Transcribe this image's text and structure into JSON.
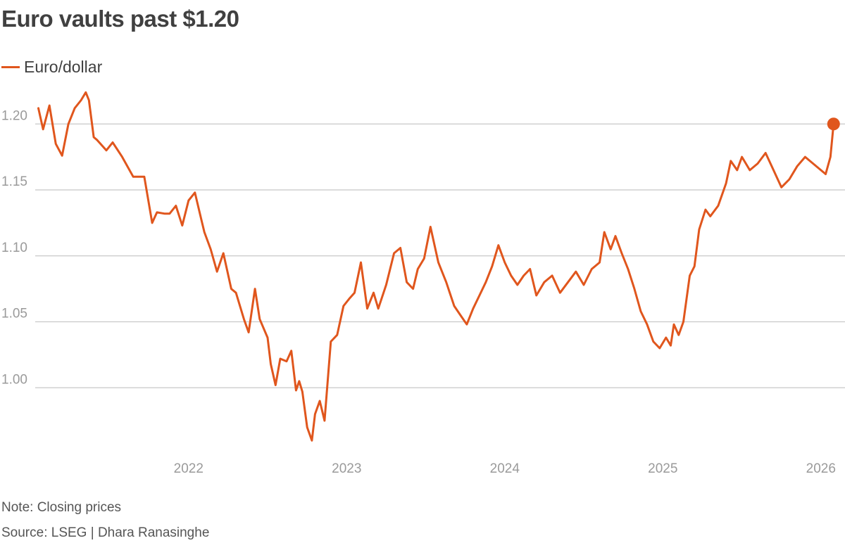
{
  "colors": {
    "series": "#e0561d",
    "grid": "#c8c8c8",
    "tick": "#9a9a9a"
  },
  "chart_data": {
    "type": "line",
    "title": "Euro vaults past $1.20",
    "legend": [
      "Euro/dollar"
    ],
    "note": "Note: Closing prices",
    "source": "Source: LSEG | Dhara Ranasinghe",
    "y_ticks": [
      1.0,
      1.05,
      1.1,
      1.15,
      1.2
    ],
    "y_tick_labels": [
      "1.00",
      "1.05",
      "1.10",
      "1.15",
      "1.20"
    ],
    "x_ticks": [
      2022,
      2023,
      2024,
      2025,
      2026
    ],
    "x_tick_labels": [
      "2022",
      "2023",
      "2024",
      "2025",
      "2026"
    ],
    "xlim": [
      2021.03,
      2026.13
    ],
    "ylim": [
      0.95,
      1.23
    ],
    "end_label": "1.2",
    "series": [
      {
        "name": "Euro/dollar",
        "x": [
          2021.05,
          2021.08,
          2021.12,
          2021.16,
          2021.2,
          2021.24,
          2021.28,
          2021.32,
          2021.35,
          2021.37,
          2021.4,
          2021.42,
          2021.45,
          2021.48,
          2021.52,
          2021.58,
          2021.65,
          2021.72,
          2021.77,
          2021.8,
          2021.85,
          2021.88,
          2021.92,
          2021.96,
          2022.0,
          2022.04,
          2022.08,
          2022.1,
          2022.14,
          2022.18,
          2022.22,
          2022.27,
          2022.3,
          2022.35,
          2022.38,
          2022.42,
          2022.45,
          2022.5,
          2022.52,
          2022.55,
          2022.58,
          2022.62,
          2022.65,
          2022.68,
          2022.7,
          2022.72,
          2022.75,
          2022.78,
          2022.8,
          2022.83,
          2022.86,
          2022.9,
          2022.94,
          2022.98,
          2023.02,
          2023.05,
          2023.09,
          2023.13,
          2023.17,
          2023.2,
          2023.25,
          2023.3,
          2023.34,
          2023.38,
          2023.42,
          2023.45,
          2023.49,
          2023.53,
          2023.58,
          2023.63,
          2023.68,
          2023.72,
          2023.76,
          2023.8,
          2023.84,
          2023.88,
          2023.92,
          2023.96,
          2024.0,
          2024.04,
          2024.08,
          2024.12,
          2024.16,
          2024.2,
          2024.25,
          2024.3,
          2024.35,
          2024.4,
          2024.45,
          2024.5,
          2024.55,
          2024.6,
          2024.63,
          2024.67,
          2024.7,
          2024.74,
          2024.78,
          2024.82,
          2024.86,
          2024.9,
          2024.94,
          2024.98,
          2025.02,
          2025.05,
          2025.07,
          2025.1,
          2025.13,
          2025.17,
          2025.2,
          2025.23,
          2025.27,
          2025.3,
          2025.35,
          2025.4,
          2025.43,
          2025.47,
          2025.5,
          2025.55,
          2025.6,
          2025.65,
          2025.7,
          2025.75,
          2025.8,
          2025.85,
          2025.9,
          2025.95,
          2026.0,
          2026.03,
          2026.06,
          2026.08
        ],
        "values": [
          1.212,
          1.196,
          1.214,
          1.185,
          1.176,
          1.2,
          1.212,
          1.218,
          1.224,
          1.218,
          1.19,
          1.188,
          1.184,
          1.18,
          1.186,
          1.175,
          1.16,
          1.16,
          1.125,
          1.133,
          1.132,
          1.132,
          1.138,
          1.123,
          1.142,
          1.148,
          1.128,
          1.118,
          1.105,
          1.088,
          1.102,
          1.075,
          1.072,
          1.052,
          1.042,
          1.075,
          1.052,
          1.038,
          1.018,
          1.002,
          1.022,
          1.02,
          1.028,
          0.998,
          1.005,
          0.997,
          0.97,
          0.96,
          0.98,
          0.99,
          0.975,
          1.035,
          1.04,
          1.062,
          1.068,
          1.072,
          1.095,
          1.06,
          1.072,
          1.06,
          1.078,
          1.102,
          1.106,
          1.08,
          1.075,
          1.09,
          1.098,
          1.122,
          1.095,
          1.08,
          1.062,
          1.055,
          1.048,
          1.06,
          1.07,
          1.08,
          1.092,
          1.108,
          1.095,
          1.085,
          1.078,
          1.085,
          1.09,
          1.07,
          1.08,
          1.085,
          1.072,
          1.08,
          1.088,
          1.078,
          1.09,
          1.095,
          1.118,
          1.105,
          1.115,
          1.102,
          1.09,
          1.075,
          1.058,
          1.048,
          1.035,
          1.03,
          1.038,
          1.032,
          1.048,
          1.04,
          1.05,
          1.085,
          1.092,
          1.12,
          1.135,
          1.13,
          1.138,
          1.155,
          1.172,
          1.165,
          1.175,
          1.165,
          1.17,
          1.178,
          1.165,
          1.152,
          1.158,
          1.168,
          1.175,
          1.17,
          1.165,
          1.162,
          1.175,
          1.2
        ]
      }
    ]
  }
}
